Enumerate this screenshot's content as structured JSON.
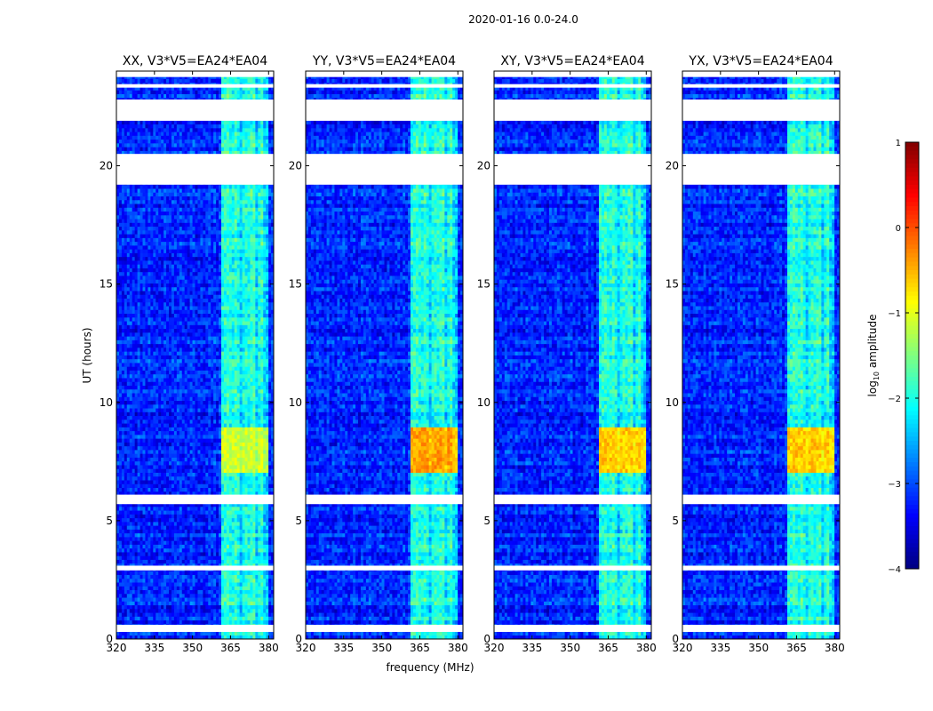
{
  "chart_data": {
    "type": "heatmap",
    "suptitle": "2020-01-16 0.0-24.0",
    "xlabel": "frequency (MHz)",
    "ylabel": "UT (hours)",
    "xlim": [
      320,
      382
    ],
    "ylim": [
      0,
      24
    ],
    "xticks": [
      320,
      335,
      350,
      365,
      380
    ],
    "yticks": [
      0,
      5,
      10,
      15,
      20
    ],
    "panels": [
      {
        "title": "XX, V3*V5=EA24*EA04",
        "polarization": "XX",
        "burst_peak_log10": -0.9
      },
      {
        "title": "YY, V3*V5=EA24*EA04",
        "polarization": "YY",
        "burst_peak_log10": -0.2
      },
      {
        "title": "XY, V3*V5=EA24*EA04",
        "polarization": "XY",
        "burst_peak_log10": -0.4
      },
      {
        "title": "YX, V3*V5=EA24*EA04",
        "polarization": "YX",
        "burst_peak_log10": -0.4
      }
    ],
    "rfi_band_mhz": [
      361,
      380
    ],
    "burst_ut_hours": [
      7.1,
      9.0
    ],
    "background_log10": -3.2,
    "colorbar": {
      "label": "log10 amplitude",
      "label_base": "log",
      "label_sub": "10",
      "label_tail": " amplitude",
      "ticks": [
        1,
        0,
        -1,
        -2,
        -3,
        -4
      ],
      "range": [
        -4,
        1
      ],
      "colormap": "jet"
    },
    "flagged_gaps_hours": [
      [
        0.3,
        0.6
      ],
      [
        2.9,
        3.1
      ],
      [
        5.7,
        6.1
      ],
      [
        19.2,
        20.5
      ],
      [
        21.9,
        22.8
      ],
      [
        23.3,
        23.45
      ],
      [
        23.75,
        24.0
      ]
    ],
    "gap_color": "#ffffff"
  }
}
